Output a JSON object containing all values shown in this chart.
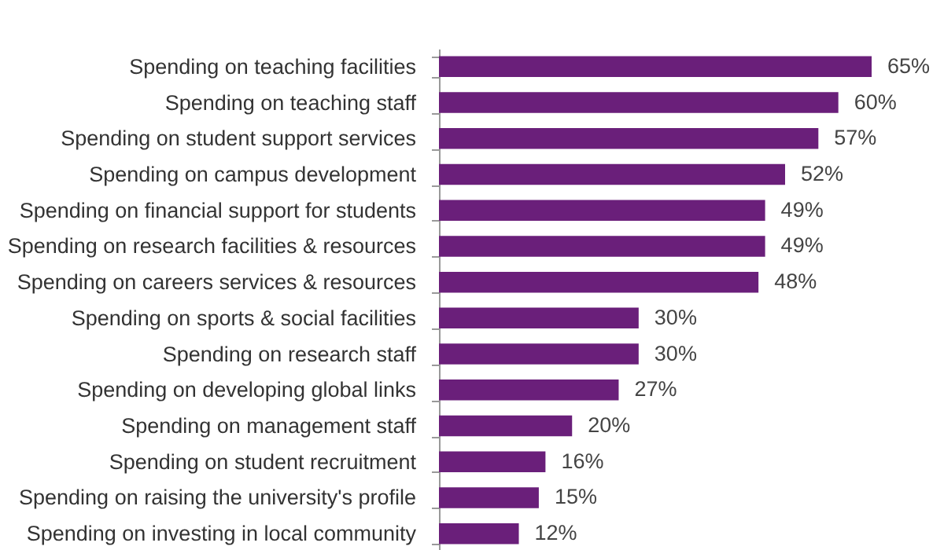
{
  "chart_data": {
    "type": "bar",
    "orientation": "horizontal",
    "color": "#6a1f7a",
    "categories": [
      "Spending on teaching facilities",
      "Spending on teaching staff",
      "Spending on student support services",
      "Spending on campus development",
      "Spending on financial support for students",
      "Spending on research facilities & resources",
      "Spending on careers services & resources",
      "Spending on sports & social facilities",
      "Spending on research staff",
      "Spending on developing global links",
      "Spending on management staff",
      "Spending on student recruitment",
      "Spending on raising the university's profile",
      "Spending on investing in local community"
    ],
    "values": [
      65,
      60,
      57,
      52,
      49,
      49,
      48,
      30,
      30,
      27,
      20,
      16,
      15,
      12
    ],
    "value_labels": [
      "65%",
      "60%",
      "57%",
      "52%",
      "49%",
      "49%",
      "48%",
      "30%",
      "30%",
      "27%",
      "20%",
      "16%",
      "15%",
      "12%"
    ]
  }
}
